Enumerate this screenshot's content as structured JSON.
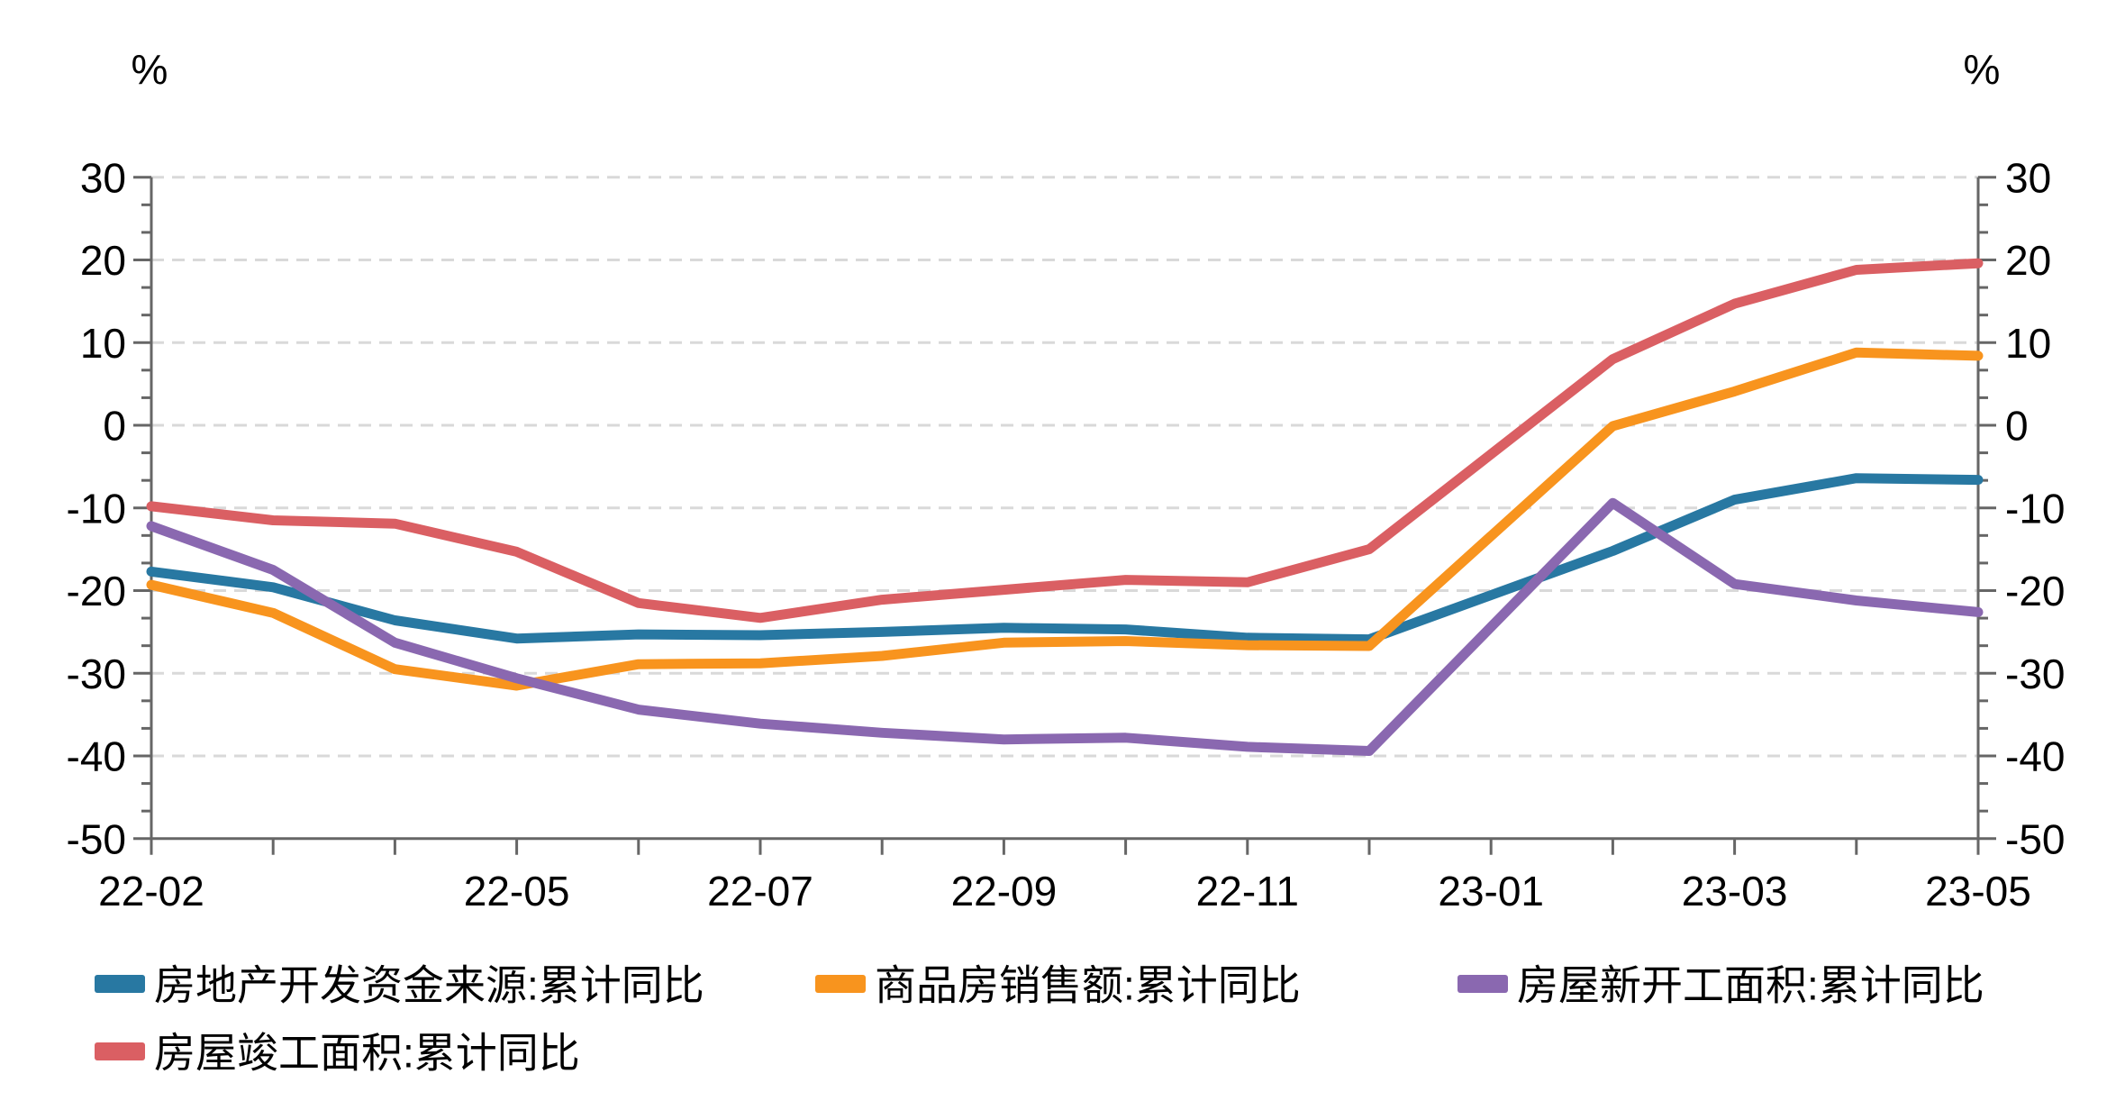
{
  "chart_data": {
    "type": "line",
    "title": "",
    "unit_label_left": "%",
    "unit_label_right": "%",
    "categories": [
      "22-02",
      "22-03",
      "22-04",
      "22-05",
      "22-06",
      "22-07",
      "22-08",
      "22-09",
      "22-10",
      "22-11",
      "22-12",
      "23-01",
      "23-02",
      "23-03",
      "23-04",
      "23-05"
    ],
    "x_tick_labels": [
      "22-02",
      "22-05",
      "22-07",
      "22-09",
      "22-11",
      "23-01",
      "23-03",
      "23-05"
    ],
    "x_tick_label_indices": [
      0,
      3,
      5,
      7,
      9,
      11,
      13,
      15
    ],
    "ylim": [
      -50,
      30
    ],
    "y_major_step": 10,
    "y_minor_divisions": 3,
    "y_tick_labels": [
      "30",
      "20",
      "10",
      "0",
      "-10",
      "-20",
      "-30",
      "-40",
      "-50"
    ],
    "grid": "horizontal-dashed",
    "grid_color": "#D9D9D9",
    "axis_color": "#666666",
    "legend_position": "bottom",
    "series": [
      {
        "name": "房地产开发资金来源:累计同比",
        "color": "#2878A2",
        "values": [
          -17.7,
          -19.6,
          -23.6,
          -25.8,
          -25.3,
          -25.4,
          -25.0,
          -24.5,
          -24.7,
          -25.7,
          -25.9,
          null,
          -15.2,
          -9.0,
          -6.4,
          -6.6
        ]
      },
      {
        "name": "商品房销售额:累计同比",
        "color": "#F8941E",
        "values": [
          -19.3,
          -22.7,
          -29.5,
          -31.5,
          -28.9,
          -28.8,
          -27.9,
          -26.3,
          -26.1,
          -26.6,
          -26.7,
          null,
          -0.1,
          4.1,
          8.8,
          8.4
        ]
      },
      {
        "name": "房屋新开工面积:累计同比",
        "color": "#8A68B0",
        "values": [
          -12.2,
          -17.5,
          -26.3,
          -30.6,
          -34.4,
          -36.1,
          -37.2,
          -38.0,
          -37.8,
          -38.9,
          -39.4,
          null,
          -9.4,
          -19.2,
          -21.2,
          -22.6
        ]
      },
      {
        "name": "房屋竣工面积:累计同比",
        "color": "#DA5F63",
        "values": [
          -9.8,
          -11.5,
          -11.9,
          -15.3,
          -21.5,
          -23.3,
          -21.1,
          -19.9,
          -18.7,
          -19.0,
          -15.0,
          null,
          8.0,
          14.7,
          18.8,
          19.6
        ]
      }
    ]
  }
}
